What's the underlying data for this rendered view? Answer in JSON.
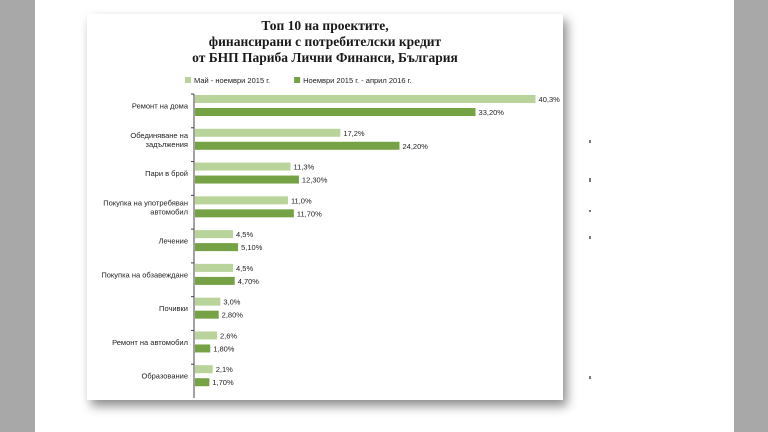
{
  "chart_data": {
    "type": "bar",
    "orientation": "horizontal",
    "title": [
      "Топ 10 на проектите,",
      "финансирани с потребителски кредит",
      "от БНП Париба Лични Финанси, България"
    ],
    "categories": [
      [
        "Ремонт на дома"
      ],
      [
        "Обединяване на",
        "задължения"
      ],
      [
        "Пари в брой"
      ],
      [
        "Покупка на употребяван",
        "автомобил"
      ],
      [
        "Лечение"
      ],
      [
        "Покупка на обзавеждане"
      ],
      [
        "Почивки"
      ],
      [
        "Ремонт на автомобил"
      ],
      [
        "Образование"
      ]
    ],
    "series": [
      {
        "name": "Май - ноември 2015 г.",
        "color": "#b9d49a",
        "values": [
          40.3,
          17.2,
          11.3,
          11.0,
          4.5,
          4.5,
          3.0,
          2.6,
          2.1
        ],
        "labels": [
          "40,3%",
          "17,2%",
          "11,3%",
          "11,0%",
          "4,5%",
          "4,5%",
          "3,0%",
          "2,6%",
          "2,1%"
        ]
      },
      {
        "name": "Ноември 2015 г. - април 2016 г.",
        "color": "#76a246",
        "values": [
          33.2,
          24.2,
          12.3,
          11.7,
          5.1,
          4.7,
          2.8,
          1.8,
          1.7
        ],
        "labels": [
          "33,20%",
          "24,20%",
          "12,30%",
          "11,70%",
          "5,10%",
          "4,70%",
          "2,80%",
          "1,80%",
          "1,70%"
        ]
      }
    ],
    "legend_position": "top",
    "xlim": [
      0,
      45
    ],
    "grid": false
  }
}
